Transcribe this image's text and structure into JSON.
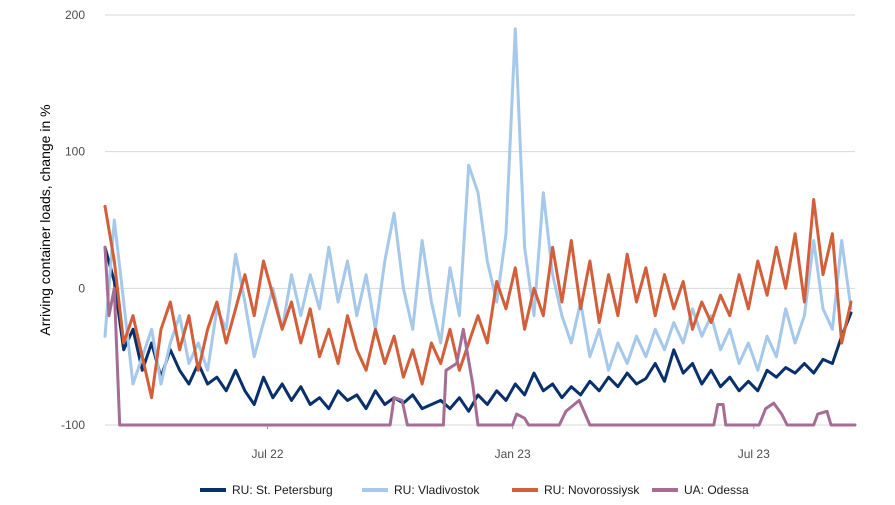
{
  "chart_data": {
    "type": "line",
    "ylabel": "Arriving container loads, change in %",
    "xlabel": "",
    "x_range": [
      "2022-03-01",
      "2023-09-15"
    ],
    "ylim": [
      -100,
      200
    ],
    "y_ticks": [
      -100,
      0,
      100,
      200
    ],
    "x_ticks": [
      {
        "date": "2022-07-01",
        "label": "Jul 22"
      },
      {
        "date": "2023-01-01",
        "label": "Jan 23"
      },
      {
        "date": "2023-07-01",
        "label": "Jul 23"
      }
    ],
    "grid": "horizontal",
    "legend_position": "bottom",
    "series": [
      {
        "name": "RU: St. Petersburg",
        "color": "#08306b",
        "points": [
          [
            "2022-03-01",
            30
          ],
          [
            "2022-03-08",
            5
          ],
          [
            "2022-03-15",
            -45
          ],
          [
            "2022-03-22",
            -30
          ],
          [
            "2022-03-29",
            -60
          ],
          [
            "2022-04-05",
            -40
          ],
          [
            "2022-04-12",
            -65
          ],
          [
            "2022-04-19",
            -45
          ],
          [
            "2022-04-26",
            -60
          ],
          [
            "2022-05-03",
            -70
          ],
          [
            "2022-05-10",
            -55
          ],
          [
            "2022-05-17",
            -70
          ],
          [
            "2022-05-24",
            -65
          ],
          [
            "2022-05-31",
            -75
          ],
          [
            "2022-06-07",
            -60
          ],
          [
            "2022-06-14",
            -75
          ],
          [
            "2022-06-21",
            -85
          ],
          [
            "2022-06-28",
            -65
          ],
          [
            "2022-07-05",
            -80
          ],
          [
            "2022-07-12",
            -70
          ],
          [
            "2022-07-19",
            -82
          ],
          [
            "2022-07-26",
            -72
          ],
          [
            "2022-08-02",
            -85
          ],
          [
            "2022-08-09",
            -80
          ],
          [
            "2022-08-16",
            -88
          ],
          [
            "2022-08-23",
            -75
          ],
          [
            "2022-08-30",
            -82
          ],
          [
            "2022-09-06",
            -78
          ],
          [
            "2022-09-13",
            -88
          ],
          [
            "2022-09-20",
            -75
          ],
          [
            "2022-09-27",
            -85
          ],
          [
            "2022-10-04",
            -80
          ],
          [
            "2022-10-11",
            -84
          ],
          [
            "2022-10-18",
            -78
          ],
          [
            "2022-10-25",
            -88
          ],
          [
            "2022-11-01",
            -85
          ],
          [
            "2022-11-08",
            -82
          ],
          [
            "2022-11-15",
            -88
          ],
          [
            "2022-11-22",
            -80
          ],
          [
            "2022-11-29",
            -90
          ],
          [
            "2022-12-06",
            -78
          ],
          [
            "2022-12-13",
            -85
          ],
          [
            "2022-12-20",
            -75
          ],
          [
            "2022-12-27",
            -82
          ],
          [
            "2023-01-03",
            -70
          ],
          [
            "2023-01-10",
            -78
          ],
          [
            "2023-01-17",
            -62
          ],
          [
            "2023-01-24",
            -75
          ],
          [
            "2023-01-31",
            -70
          ],
          [
            "2023-02-07",
            -80
          ],
          [
            "2023-02-14",
            -72
          ],
          [
            "2023-02-21",
            -78
          ],
          [
            "2023-02-28",
            -68
          ],
          [
            "2023-03-07",
            -75
          ],
          [
            "2023-03-14",
            -65
          ],
          [
            "2023-03-21",
            -72
          ],
          [
            "2023-03-28",
            -62
          ],
          [
            "2023-04-04",
            -70
          ],
          [
            "2023-04-11",
            -66
          ],
          [
            "2023-04-18",
            -55
          ],
          [
            "2023-04-25",
            -68
          ],
          [
            "2023-05-02",
            -45
          ],
          [
            "2023-05-09",
            -62
          ],
          [
            "2023-05-16",
            -55
          ],
          [
            "2023-05-23",
            -70
          ],
          [
            "2023-05-30",
            -60
          ],
          [
            "2023-06-06",
            -72
          ],
          [
            "2023-06-13",
            -65
          ],
          [
            "2023-06-20",
            -75
          ],
          [
            "2023-06-27",
            -68
          ],
          [
            "2023-07-04",
            -75
          ],
          [
            "2023-07-11",
            -60
          ],
          [
            "2023-07-18",
            -65
          ],
          [
            "2023-07-25",
            -58
          ],
          [
            "2023-08-01",
            -62
          ],
          [
            "2023-08-08",
            -55
          ],
          [
            "2023-08-15",
            -62
          ],
          [
            "2023-08-22",
            -52
          ],
          [
            "2023-08-29",
            -55
          ],
          [
            "2023-09-05",
            -35
          ],
          [
            "2023-09-12",
            -18
          ]
        ]
      },
      {
        "name": "RU: Vladivostok",
        "color": "#a6c8ea",
        "points": [
          [
            "2022-03-01",
            -35
          ],
          [
            "2022-03-08",
            50
          ],
          [
            "2022-03-15",
            -10
          ],
          [
            "2022-03-22",
            -70
          ],
          [
            "2022-03-29",
            -50
          ],
          [
            "2022-04-05",
            -30
          ],
          [
            "2022-04-12",
            -70
          ],
          [
            "2022-04-19",
            -40
          ],
          [
            "2022-04-26",
            -20
          ],
          [
            "2022-05-03",
            -55
          ],
          [
            "2022-05-10",
            -40
          ],
          [
            "2022-05-17",
            -60
          ],
          [
            "2022-05-24",
            -15
          ],
          [
            "2022-05-31",
            -30
          ],
          [
            "2022-06-07",
            25
          ],
          [
            "2022-06-14",
            -10
          ],
          [
            "2022-06-21",
            -50
          ],
          [
            "2022-06-28",
            -25
          ],
          [
            "2022-07-05",
            0
          ],
          [
            "2022-07-12",
            -30
          ],
          [
            "2022-07-19",
            10
          ],
          [
            "2022-07-26",
            -20
          ],
          [
            "2022-08-02",
            10
          ],
          [
            "2022-08-09",
            -15
          ],
          [
            "2022-08-16",
            30
          ],
          [
            "2022-08-23",
            -10
          ],
          [
            "2022-08-30",
            20
          ],
          [
            "2022-09-06",
            -20
          ],
          [
            "2022-09-13",
            10
          ],
          [
            "2022-09-20",
            -30
          ],
          [
            "2022-09-27",
            20
          ],
          [
            "2022-10-04",
            55
          ],
          [
            "2022-10-11",
            0
          ],
          [
            "2022-10-18",
            -30
          ],
          [
            "2022-10-25",
            35
          ],
          [
            "2022-11-01",
            -10
          ],
          [
            "2022-11-08",
            -40
          ],
          [
            "2022-11-15",
            15
          ],
          [
            "2022-11-22",
            -20
          ],
          [
            "2022-11-29",
            90
          ],
          [
            "2022-12-06",
            70
          ],
          [
            "2022-12-13",
            20
          ],
          [
            "2022-12-20",
            -10
          ],
          [
            "2022-12-27",
            40
          ],
          [
            "2023-01-03",
            190
          ],
          [
            "2023-01-10",
            30
          ],
          [
            "2023-01-17",
            -20
          ],
          [
            "2023-01-24",
            70
          ],
          [
            "2023-01-31",
            10
          ],
          [
            "2023-02-07",
            -20
          ],
          [
            "2023-02-14",
            -40
          ],
          [
            "2023-02-21",
            -10
          ],
          [
            "2023-02-28",
            -50
          ],
          [
            "2023-03-07",
            -30
          ],
          [
            "2023-03-14",
            -60
          ],
          [
            "2023-03-21",
            -40
          ],
          [
            "2023-03-28",
            -55
          ],
          [
            "2023-04-04",
            -35
          ],
          [
            "2023-04-11",
            -50
          ],
          [
            "2023-04-18",
            -30
          ],
          [
            "2023-04-25",
            -45
          ],
          [
            "2023-05-02",
            -25
          ],
          [
            "2023-05-09",
            -40
          ],
          [
            "2023-05-16",
            -15
          ],
          [
            "2023-05-23",
            -35
          ],
          [
            "2023-05-30",
            -20
          ],
          [
            "2023-06-06",
            -45
          ],
          [
            "2023-06-13",
            -30
          ],
          [
            "2023-06-20",
            -55
          ],
          [
            "2023-06-27",
            -40
          ],
          [
            "2023-07-04",
            -60
          ],
          [
            "2023-07-11",
            -35
          ],
          [
            "2023-07-18",
            -50
          ],
          [
            "2023-07-25",
            -15
          ],
          [
            "2023-08-01",
            -40
          ],
          [
            "2023-08-08",
            -20
          ],
          [
            "2023-08-15",
            35
          ],
          [
            "2023-08-22",
            -15
          ],
          [
            "2023-08-29",
            -30
          ],
          [
            "2023-09-05",
            35
          ],
          [
            "2023-09-12",
            -15
          ]
        ]
      },
      {
        "name": "RU: Novorossiysk",
        "color": "#d35f3a",
        "points": [
          [
            "2022-03-01",
            60
          ],
          [
            "2022-03-08",
            20
          ],
          [
            "2022-03-15",
            -40
          ],
          [
            "2022-03-22",
            -20
          ],
          [
            "2022-03-29",
            -50
          ],
          [
            "2022-04-05",
            -80
          ],
          [
            "2022-04-12",
            -30
          ],
          [
            "2022-04-19",
            -10
          ],
          [
            "2022-04-26",
            -45
          ],
          [
            "2022-05-03",
            -20
          ],
          [
            "2022-05-10",
            -60
          ],
          [
            "2022-05-17",
            -30
          ],
          [
            "2022-05-24",
            -10
          ],
          [
            "2022-05-31",
            -40
          ],
          [
            "2022-06-07",
            -15
          ],
          [
            "2022-06-14",
            10
          ],
          [
            "2022-06-21",
            -20
          ],
          [
            "2022-06-28",
            20
          ],
          [
            "2022-07-05",
            -5
          ],
          [
            "2022-07-12",
            -30
          ],
          [
            "2022-07-19",
            -10
          ],
          [
            "2022-07-26",
            -40
          ],
          [
            "2022-08-02",
            -15
          ],
          [
            "2022-08-09",
            -50
          ],
          [
            "2022-08-16",
            -30
          ],
          [
            "2022-08-23",
            -55
          ],
          [
            "2022-08-30",
            -20
          ],
          [
            "2022-09-06",
            -45
          ],
          [
            "2022-09-13",
            -60
          ],
          [
            "2022-09-20",
            -30
          ],
          [
            "2022-09-27",
            -55
          ],
          [
            "2022-10-04",
            -35
          ],
          [
            "2022-10-11",
            -65
          ],
          [
            "2022-10-18",
            -45
          ],
          [
            "2022-10-25",
            -70
          ],
          [
            "2022-11-01",
            -40
          ],
          [
            "2022-11-08",
            -55
          ],
          [
            "2022-11-15",
            -30
          ],
          [
            "2022-11-22",
            -60
          ],
          [
            "2022-11-29",
            -40
          ],
          [
            "2022-12-06",
            -20
          ],
          [
            "2022-12-13",
            -40
          ],
          [
            "2022-12-20",
            5
          ],
          [
            "2022-12-27",
            -15
          ],
          [
            "2023-01-03",
            15
          ],
          [
            "2023-01-10",
            -30
          ],
          [
            "2023-01-17",
            0
          ],
          [
            "2023-01-24",
            -20
          ],
          [
            "2023-01-31",
            30
          ],
          [
            "2023-02-07",
            -10
          ],
          [
            "2023-02-14",
            35
          ],
          [
            "2023-02-21",
            -15
          ],
          [
            "2023-02-28",
            20
          ],
          [
            "2023-03-07",
            -25
          ],
          [
            "2023-03-14",
            10
          ],
          [
            "2023-03-21",
            -20
          ],
          [
            "2023-03-28",
            25
          ],
          [
            "2023-04-04",
            -10
          ],
          [
            "2023-04-11",
            15
          ],
          [
            "2023-04-18",
            -20
          ],
          [
            "2023-04-25",
            10
          ],
          [
            "2023-05-02",
            -15
          ],
          [
            "2023-05-09",
            5
          ],
          [
            "2023-05-16",
            -30
          ],
          [
            "2023-05-23",
            -10
          ],
          [
            "2023-05-30",
            -25
          ],
          [
            "2023-06-06",
            -5
          ],
          [
            "2023-06-13",
            -20
          ],
          [
            "2023-06-20",
            10
          ],
          [
            "2023-06-27",
            -15
          ],
          [
            "2023-07-04",
            20
          ],
          [
            "2023-07-11",
            -5
          ],
          [
            "2023-07-18",
            30
          ],
          [
            "2023-07-25",
            0
          ],
          [
            "2023-08-01",
            40
          ],
          [
            "2023-08-08",
            -10
          ],
          [
            "2023-08-15",
            65
          ],
          [
            "2023-08-22",
            10
          ],
          [
            "2023-08-29",
            40
          ],
          [
            "2023-09-05",
            -40
          ],
          [
            "2023-09-12",
            -10
          ]
        ]
      },
      {
        "name": "UA: Odessa",
        "color": "#a56d93",
        "points": [
          [
            "2022-03-01",
            30
          ],
          [
            "2022-03-04",
            -20
          ],
          [
            "2022-03-08",
            0
          ],
          [
            "2022-03-12",
            -100
          ],
          [
            "2022-10-01",
            -100
          ],
          [
            "2022-10-04",
            -80
          ],
          [
            "2022-10-10",
            -82
          ],
          [
            "2022-10-14",
            -100
          ],
          [
            "2022-11-10",
            -100
          ],
          [
            "2022-11-12",
            -60
          ],
          [
            "2022-11-20",
            -55
          ],
          [
            "2022-11-25",
            -30
          ],
          [
            "2022-12-02",
            -70
          ],
          [
            "2022-12-06",
            -100
          ],
          [
            "2023-01-01",
            -100
          ],
          [
            "2023-01-04",
            -92
          ],
          [
            "2023-01-10",
            -95
          ],
          [
            "2023-01-13",
            -100
          ],
          [
            "2023-02-05",
            -100
          ],
          [
            "2023-02-10",
            -90
          ],
          [
            "2023-02-20",
            -82
          ],
          [
            "2023-02-28",
            -100
          ],
          [
            "2023-06-01",
            -100
          ],
          [
            "2023-06-04",
            -85
          ],
          [
            "2023-06-08",
            -85
          ],
          [
            "2023-06-10",
            -100
          ],
          [
            "2023-07-05",
            -100
          ],
          [
            "2023-07-10",
            -88
          ],
          [
            "2023-07-16",
            -84
          ],
          [
            "2023-07-22",
            -92
          ],
          [
            "2023-07-26",
            -100
          ],
          [
            "2023-08-15",
            -100
          ],
          [
            "2023-08-18",
            -92
          ],
          [
            "2023-08-25",
            -90
          ],
          [
            "2023-08-28",
            -100
          ],
          [
            "2023-09-15",
            -100
          ]
        ]
      }
    ]
  }
}
